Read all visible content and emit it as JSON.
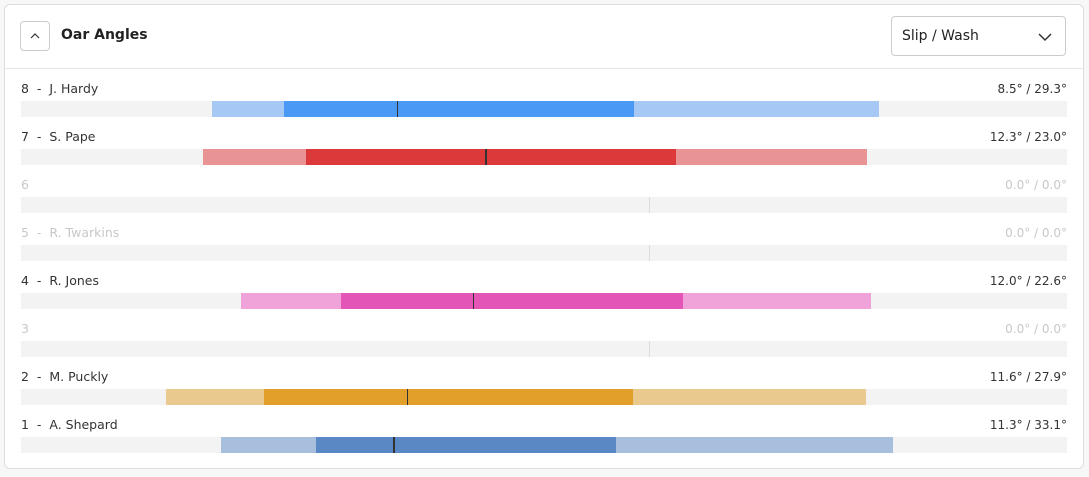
{
  "header": {
    "title": "Oar Angles",
    "dropdown": "Slip / Wash"
  },
  "scale": [
    -60,
    40
  ],
  "rows": [
    {
      "seat": "8",
      "name": "J. Hardy",
      "value": "8.5° / 29.3°",
      "light": "#a6c8f5",
      "dark": "#4a9af5",
      "start": -41.7,
      "inner_start": -34.9,
      "mark": -24.1,
      "inner_end": -1.4,
      "end": 22.0
    },
    {
      "seat": "7",
      "name": "S. Pape",
      "value": "12.3° / 23.0°",
      "light": "#e89494",
      "dark": "#dc3a3a",
      "start": -42.6,
      "inner_start": -32.8,
      "mark": -15.6,
      "inner_end": 2.6,
      "end": 20.9
    },
    {
      "seat": "6",
      "value": "0.0° / 0.0°",
      "mark": 0
    },
    {
      "seat": "5",
      "name": "R. Twarkins",
      "value": "0.0° / 0.0°",
      "mark": 0
    },
    {
      "seat": "4",
      "name": "R. Jones",
      "value": "12.0° / 22.6°",
      "light": "#efa3d8",
      "dark": "#e455b8",
      "start": -39.0,
      "inner_start": -29.4,
      "mark": -16.8,
      "inner_end": 3.3,
      "end": 21.3
    },
    {
      "seat": "3",
      "value": "0.0° / 0.0°",
      "mark": 0
    },
    {
      "seat": "2",
      "name": "M. Puckly",
      "value": "11.6° / 27.9°",
      "light": "#eac98e",
      "dark": "#e2a02a",
      "start": -46.1,
      "inner_start": -36.8,
      "mark": -23.1,
      "inner_end": -1.5,
      "end": 20.8
    },
    {
      "seat": "1",
      "name": "A. Shepard",
      "value": "11.3° / 33.1°",
      "light": "#a7bfdd",
      "dark": "#5a88c4",
      "start": -40.9,
      "inner_start": -31.8,
      "mark": -24.4,
      "inner_end": -3.1,
      "end": 23.4
    }
  ]
}
